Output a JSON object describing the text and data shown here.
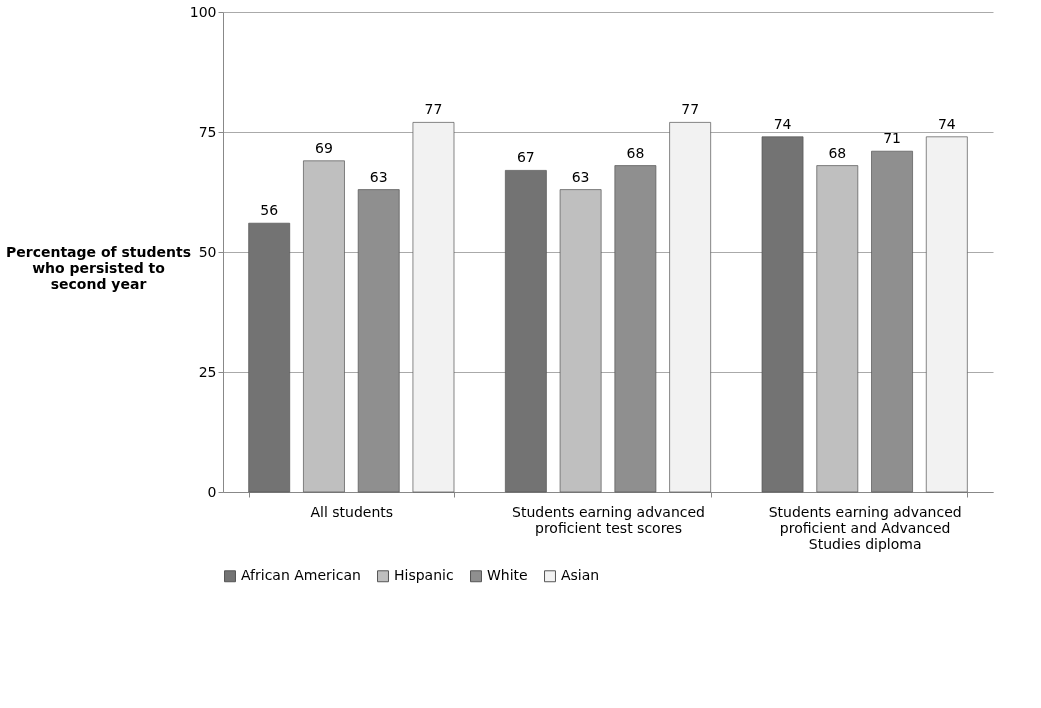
{
  "chart_data": {
    "type": "bar",
    "ylabel": "Percentage of students who persisted to second year",
    "categories": [
      "All students",
      "Students earning advanced proficient test scores",
      "Students earning advanced proficient and Advanced Studies diploma"
    ],
    "series": [
      {
        "name": "African American",
        "color": "#737373",
        "values": [
          56,
          67,
          74
        ]
      },
      {
        "name": "Hispanic",
        "color": "#bfbfbf",
        "values": [
          69,
          63,
          68
        ]
      },
      {
        "name": "White",
        "color": "#8f8f8f",
        "values": [
          63,
          68,
          71
        ]
      },
      {
        "name": "Asian",
        "color": "#f2f2f2",
        "values": [
          77,
          77,
          74
        ]
      }
    ],
    "ylim": [
      0,
      100
    ],
    "yticks": [
      0,
      25,
      50,
      75,
      100
    ],
    "grid": "y",
    "legend": "bottom",
    "data_labels": true
  }
}
